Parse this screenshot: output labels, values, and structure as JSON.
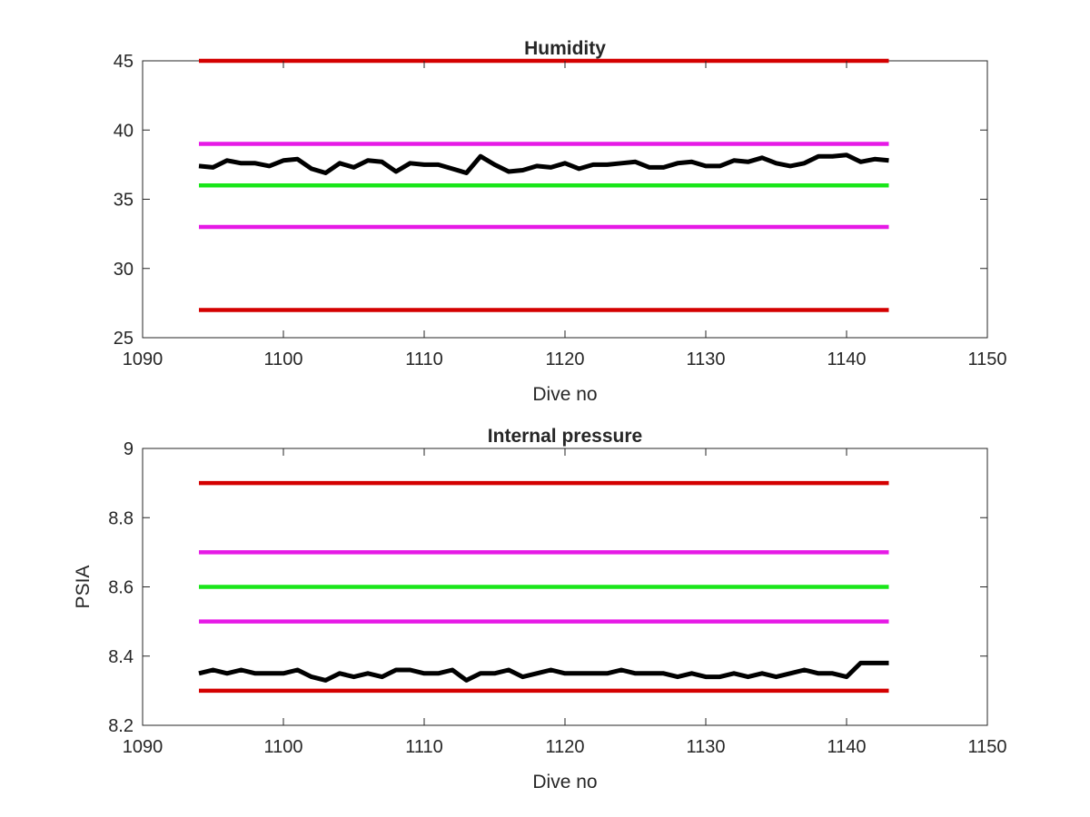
{
  "chart_data": [
    {
      "type": "line",
      "title": "Humidity",
      "xlabel": "Dive no",
      "ylabel": "",
      "xlim": [
        1090,
        1150
      ],
      "ylim": [
        25,
        45
      ],
      "xticks": [
        "1090",
        "1100",
        "1110",
        "1120",
        "1130",
        "1140",
        "1150"
      ],
      "yticks": [
        "25",
        "30",
        "35",
        "40",
        "45"
      ],
      "grid": false,
      "series": [
        {
          "color": "#d40000",
          "x": [
            1094,
            1143
          ],
          "values": [
            45,
            45
          ]
        },
        {
          "color": "#e619e6",
          "x": [
            1094,
            1143
          ],
          "values": [
            39,
            39
          ]
        },
        {
          "color": "#19e619",
          "x": [
            1094,
            1143
          ],
          "values": [
            36,
            36
          ]
        },
        {
          "color": "#e619e6",
          "x": [
            1094,
            1143
          ],
          "values": [
            33,
            33
          ]
        },
        {
          "color": "#d40000",
          "x": [
            1094,
            1143
          ],
          "values": [
            27,
            27
          ]
        },
        {
          "color": "#000000",
          "x": [
            1094,
            1095,
            1096,
            1097,
            1098,
            1099,
            1100,
            1101,
            1102,
            1103,
            1104,
            1105,
            1106,
            1107,
            1108,
            1109,
            1110,
            1111,
            1112,
            1113,
            1114,
            1115,
            1116,
            1117,
            1118,
            1119,
            1120,
            1121,
            1122,
            1123,
            1124,
            1125,
            1126,
            1127,
            1128,
            1129,
            1130,
            1131,
            1132,
            1133,
            1134,
            1135,
            1136,
            1137,
            1138,
            1139,
            1140,
            1141,
            1142,
            1143
          ],
          "values": [
            37.4,
            37.3,
            37.8,
            37.6,
            37.6,
            37.4,
            37.8,
            37.9,
            37.2,
            36.9,
            37.6,
            37.3,
            37.8,
            37.7,
            37.0,
            37.6,
            37.5,
            37.5,
            37.2,
            36.9,
            38.1,
            37.5,
            37.0,
            37.1,
            37.4,
            37.3,
            37.6,
            37.2,
            37.5,
            37.5,
            37.6,
            37.7,
            37.3,
            37.3,
            37.6,
            37.7,
            37.4,
            37.4,
            37.8,
            37.7,
            38.0,
            37.6,
            37.4,
            37.6,
            38.1,
            38.1,
            38.2,
            37.7,
            37.9,
            37.8
          ]
        }
      ]
    },
    {
      "type": "line",
      "title": "Internal pressure",
      "xlabel": "Dive no",
      "ylabel": "PSIA",
      "xlim": [
        1090,
        1150
      ],
      "ylim": [
        8.2,
        9
      ],
      "xticks": [
        "1090",
        "1100",
        "1110",
        "1120",
        "1130",
        "1140",
        "1150"
      ],
      "yticks": [
        "8.2",
        "8.4",
        "8.6",
        "8.8",
        "9"
      ],
      "grid": false,
      "series": [
        {
          "color": "#d40000",
          "x": [
            1094,
            1143
          ],
          "values": [
            8.9,
            8.9
          ]
        },
        {
          "color": "#e619e6",
          "x": [
            1094,
            1143
          ],
          "values": [
            8.7,
            8.7
          ]
        },
        {
          "color": "#19e619",
          "x": [
            1094,
            1143
          ],
          "values": [
            8.6,
            8.6
          ]
        },
        {
          "color": "#e619e6",
          "x": [
            1094,
            1143
          ],
          "values": [
            8.5,
            8.5
          ]
        },
        {
          "color": "#d40000",
          "x": [
            1094,
            1143
          ],
          "values": [
            8.3,
            8.3
          ]
        },
        {
          "color": "#000000",
          "x": [
            1094,
            1095,
            1096,
            1097,
            1098,
            1099,
            1100,
            1101,
            1102,
            1103,
            1104,
            1105,
            1106,
            1107,
            1108,
            1109,
            1110,
            1111,
            1112,
            1113,
            1114,
            1115,
            1116,
            1117,
            1118,
            1119,
            1120,
            1121,
            1122,
            1123,
            1124,
            1125,
            1126,
            1127,
            1128,
            1129,
            1130,
            1131,
            1132,
            1133,
            1134,
            1135,
            1136,
            1137,
            1138,
            1139,
            1140,
            1141,
            1142,
            1143
          ],
          "values": [
            8.35,
            8.36,
            8.35,
            8.36,
            8.35,
            8.35,
            8.35,
            8.36,
            8.34,
            8.33,
            8.35,
            8.34,
            8.35,
            8.34,
            8.36,
            8.36,
            8.35,
            8.35,
            8.36,
            8.33,
            8.35,
            8.35,
            8.36,
            8.34,
            8.35,
            8.36,
            8.35,
            8.35,
            8.35,
            8.35,
            8.36,
            8.35,
            8.35,
            8.35,
            8.34,
            8.35,
            8.34,
            8.34,
            8.35,
            8.34,
            8.35,
            8.34,
            8.35,
            8.36,
            8.35,
            8.35,
            8.34,
            8.38,
            8.38,
            8.38
          ]
        }
      ]
    }
  ]
}
